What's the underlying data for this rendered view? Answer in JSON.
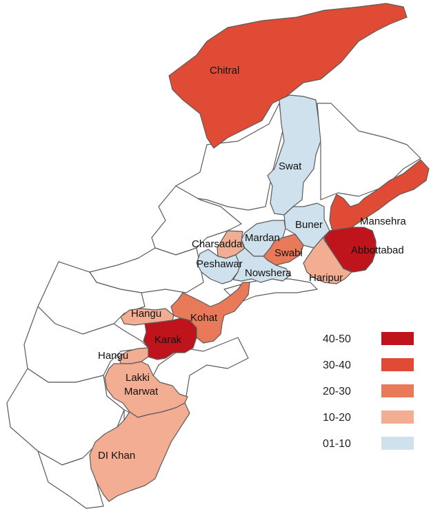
{
  "colors": {
    "40-50": "#c0141c",
    "30-40": "#e04b35",
    "20-30": "#e87a5a",
    "10-20": "#f2ad93",
    "01-10": "#cfe1ec",
    "none": "#ffffff"
  },
  "districts": [
    {
      "name": "Chitral",
      "range": "30-40"
    },
    {
      "name": "Swat",
      "range": "01-10"
    },
    {
      "name": "Mansehra",
      "range": "30-40"
    },
    {
      "name": "Buner",
      "range": "01-10"
    },
    {
      "name": "Mardan",
      "range": "01-10"
    },
    {
      "name": "Charsadda",
      "range": "10-20"
    },
    {
      "name": "Swabi",
      "range": "20-30"
    },
    {
      "name": "Abbottabad",
      "range": "40-50"
    },
    {
      "name": "Peshawar",
      "range": "01-10"
    },
    {
      "name": "Nowshera",
      "range": "01-10"
    },
    {
      "name": "Haripur",
      "range": "10-20"
    },
    {
      "name": "Hangu",
      "range": "10-20"
    },
    {
      "name": "Kohat",
      "range": "20-30"
    },
    {
      "name": "Karak",
      "range": "40-50"
    },
    {
      "name": "Hangu",
      "range": "10-20"
    },
    {
      "name": "Lakki Marwat",
      "range": "10-20"
    },
    {
      "name": "DI Khan",
      "range": "10-20"
    }
  ],
  "legend": [
    {
      "label": "40-50"
    },
    {
      "label": "30-40"
    },
    {
      "label": "20-30"
    },
    {
      "label": "10-20"
    },
    {
      "label": "01-10"
    }
  ]
}
